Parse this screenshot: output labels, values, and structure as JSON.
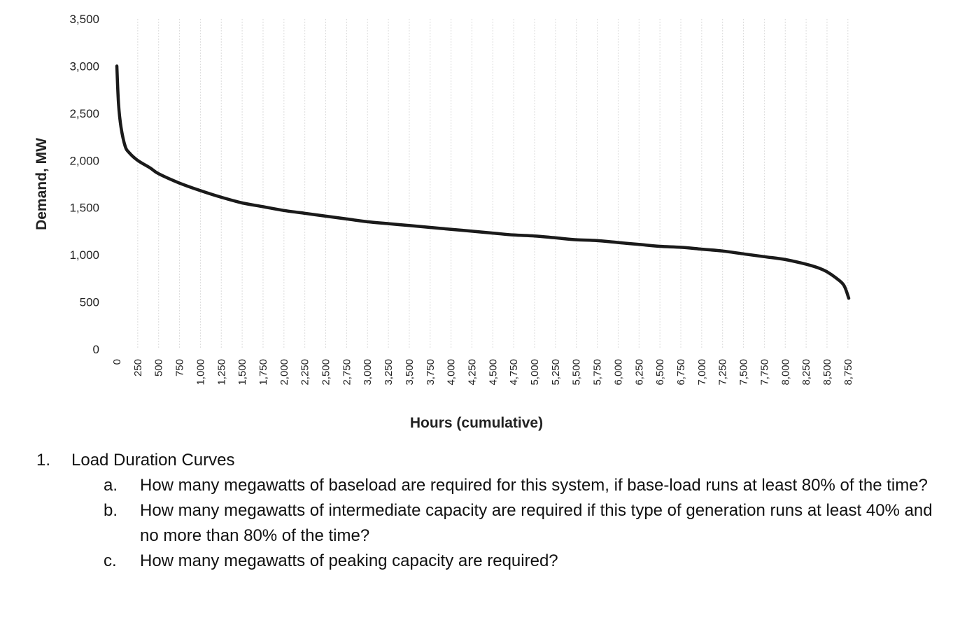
{
  "chart_data": {
    "type": "line",
    "title": "",
    "xlabel": "Hours (cumulative)",
    "ylabel": "Demand, MW",
    "ylim": [
      0,
      3500
    ],
    "xlim": [
      0,
      8760
    ],
    "grid": "vertical",
    "yticks": [
      0,
      500,
      1000,
      1500,
      2000,
      2500,
      3000,
      3500
    ],
    "ytick_labels": [
      "0",
      "500",
      "1,000",
      "1,500",
      "2,000",
      "2,500",
      "3,000",
      "3,500"
    ],
    "xticks": [
      0,
      250,
      500,
      750,
      1000,
      1250,
      1500,
      1750,
      2000,
      2250,
      2500,
      2750,
      3000,
      3250,
      3500,
      3750,
      4000,
      4250,
      4500,
      4750,
      5000,
      5250,
      5500,
      5750,
      6000,
      6250,
      6500,
      6750,
      7000,
      7250,
      7500,
      7750,
      8000,
      8250,
      8500,
      8750
    ],
    "xtick_labels": [
      "0",
      "250",
      "500",
      "750",
      "1,000",
      "1,250",
      "1,500",
      "1,750",
      "2,000",
      "2,250",
      "2,500",
      "2,750",
      "3,000",
      "3,250",
      "3,500",
      "3,750",
      "4,000",
      "4,250",
      "4,500",
      "4,750",
      "5,000",
      "5,250",
      "5,500",
      "5,750",
      "6,000",
      "6,250",
      "6,500",
      "6,750",
      "7,000",
      "7,250",
      "7,500",
      "7,750",
      "8,000",
      "8,250",
      "8,500",
      "8,750"
    ],
    "series": [
      {
        "x": [
          0,
          20,
          50,
          100,
          150,
          250,
          400,
          500,
          750,
          1000,
          1250,
          1500,
          1750,
          2000,
          2250,
          2500,
          2750,
          3000,
          3250,
          3500,
          3750,
          4000,
          4250,
          4500,
          4750,
          5000,
          5250,
          5500,
          5750,
          6000,
          6250,
          6500,
          6750,
          7000,
          7250,
          7500,
          7750,
          8000,
          8250,
          8400,
          8500,
          8600,
          8700,
          8760
        ],
        "y": [
          3000,
          2600,
          2350,
          2150,
          2080,
          2000,
          1920,
          1860,
          1760,
          1680,
          1610,
          1550,
          1510,
          1470,
          1440,
          1410,
          1380,
          1350,
          1330,
          1310,
          1290,
          1270,
          1250,
          1230,
          1210,
          1200,
          1180,
          1160,
          1150,
          1130,
          1110,
          1090,
          1080,
          1060,
          1040,
          1010,
          980,
          950,
          900,
          860,
          820,
          760,
          680,
          540
        ]
      }
    ]
  },
  "questions": {
    "number": "1.",
    "heading": "Load Duration Curves",
    "items": [
      {
        "letter": "a.",
        "text": "How many megawatts of baseload are required for this system, if base-load runs at least 80% of the time?"
      },
      {
        "letter": "b.",
        "text": "How many megawatts of intermediate capacity are required if this type of generation runs at least 40% and no more than 80% of the time?"
      },
      {
        "letter": "c.",
        "text": "How many megawatts of peaking capacity are required?"
      }
    ]
  }
}
